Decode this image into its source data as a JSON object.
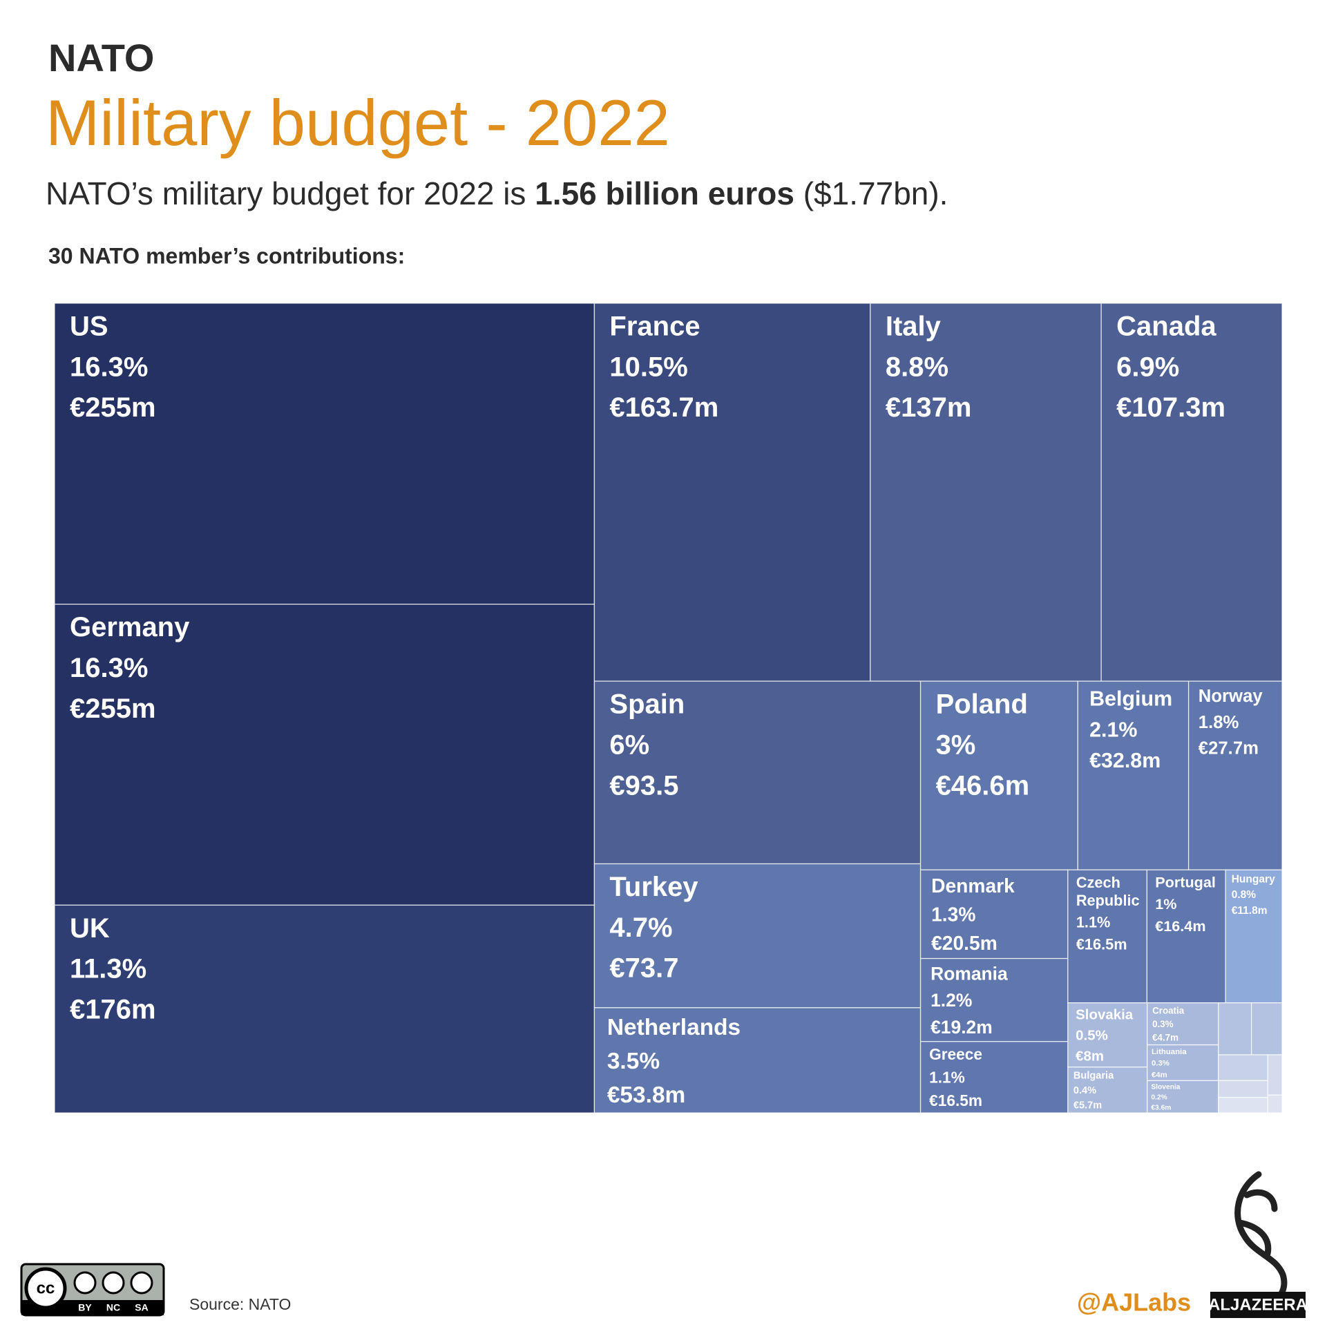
{
  "header": {
    "kicker": "NATO",
    "subtitle_parts": [
      "NATO’s military budget for 2022 is ",
      "1.56 billion euros",
      " ($1.77bn)."
    ],
    "section": "30 NATO member’s contributions:"
  },
  "chart_data": {
    "type": "treemap",
    "title": "Military budget - 2022",
    "categories": [
      "US",
      "Germany",
      "UK",
      "France",
      "Italy",
      "Canada",
      "Spain",
      "Turkey",
      "Netherlands",
      "Poland",
      "Belgium",
      "Norway",
      "Denmark",
      "Romania",
      "Greece",
      "Czech Republic",
      "Portugal",
      "Hungary",
      "Slovakia",
      "Bulgaria",
      "Croatia",
      "Lithuania",
      "Slovenia",
      null,
      null,
      null,
      null,
      null,
      null,
      null
    ],
    "values": [
      255,
      255,
      176,
      163.7,
      137,
      107.3,
      93.5,
      73.7,
      53.8,
      46.6,
      32.8,
      27.7,
      20.5,
      19.2,
      16.5,
      16.5,
      16.4,
      11.8,
      8,
      5.7,
      4.7,
      4,
      3.6,
      2.7,
      2.5,
      2,
      1.3,
      1.2,
      0.9,
      0.4
    ],
    "value_labels": [
      "€255m",
      "€255m",
      "€176m",
      "€163.7m",
      "€137m",
      "€107.3m",
      "€93.5",
      "€73.7",
      "€53.8m",
      "€46.6m",
      "€32.8m",
      "€27.7m",
      "€20.5m",
      "€19.2m",
      "€16.5m",
      "€16.5m",
      "€16.4m",
      "€11.8m",
      "€8m",
      "€5.7m",
      "€4.7m",
      "€4m",
      "€3.6m",
      null,
      null,
      null,
      null,
      null,
      null,
      null
    ],
    "shares": [
      16.3,
      16.3,
      11.3,
      10.5,
      8.8,
      6.9,
      6,
      4.7,
      3.5,
      3,
      2.1,
      1.8,
      1.3,
      1.2,
      1.1,
      1.1,
      1,
      0.8,
      0.5,
      0.4,
      0.3,
      0.3,
      0.2,
      null,
      null,
      null,
      null,
      null,
      null,
      null
    ],
    "share_labels": [
      "16.3%",
      "16.3%",
      "11.3%",
      "10.5%",
      "8.8%",
      "6.9%",
      "6%",
      "4.7%",
      "3.5%",
      "3%",
      "2.1%",
      "1.8%",
      "1.3%",
      "1.2%",
      "1.1%",
      "1.1%",
      "1%",
      "0.8%",
      "0.5%",
      "0.4%",
      "0.3%",
      "0.3%",
      "0.2%",
      null,
      null,
      null,
      null,
      null,
      null,
      null
    ],
    "colors": [
      "#253163",
      "#253163",
      "#2f3e72",
      "#3a4a7f",
      "#4e5f94",
      "#4e5f94",
      "#4e5f94",
      "#5f77ad",
      "#5f77ad",
      "#5f77ad",
      "#5f77ad",
      "#5f77ad",
      "#5f77ad",
      "#5f77ad",
      "#5f77ad",
      "#5f77ad",
      "#5f77ad",
      "#8eaadb",
      "#a9b9dc",
      "#a9b9dc",
      "#a9b9dc",
      "#a9b9dc",
      "#a9b9dc",
      "#b4c2e2",
      "#b4c2e2",
      "#c7d1e8",
      "#d3dbed",
      "#dde3f0",
      "#d3dbed",
      "#dde3f0"
    ]
  },
  "footer": {
    "source": "Source: NATO",
    "handle": "@AJLabs",
    "brand": "ALJAZEERA",
    "license": [
      "cc",
      "BY",
      "NC",
      "SA"
    ]
  }
}
